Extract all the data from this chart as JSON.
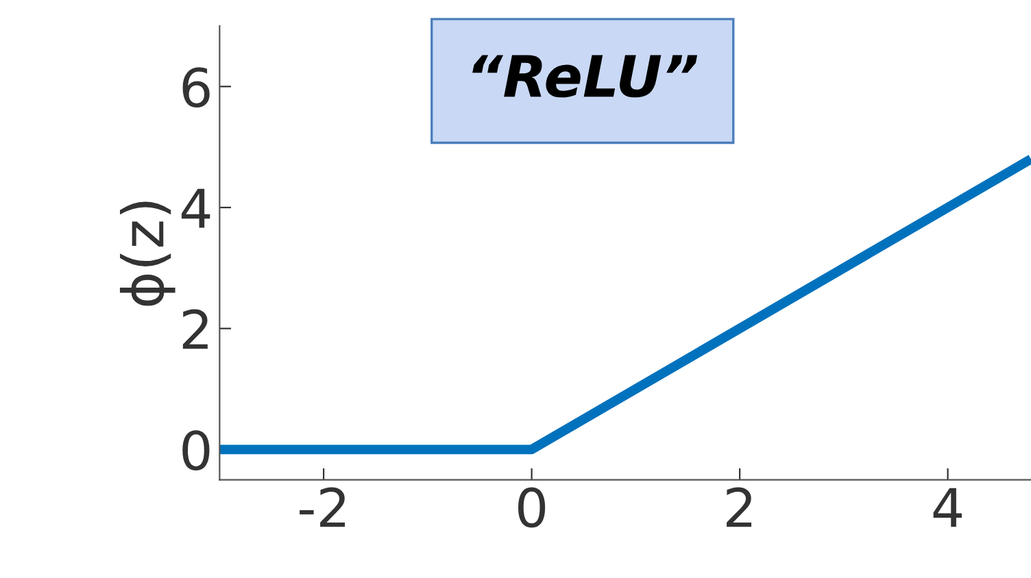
{
  "chart_data": {
    "type": "line",
    "title": "“ReLU”",
    "ylabel": "ϕ(z)",
    "x": [
      -3,
      0,
      4.8
    ],
    "series": [
      {
        "color": "#0072bd",
        "values": [
          0,
          0,
          4.8
        ]
      }
    ],
    "xlim": [
      -3,
      4.8
    ],
    "ylim": [
      -0.5,
      7
    ],
    "xticks": [
      -2,
      0,
      2,
      4
    ],
    "yticks": [
      0,
      2,
      4,
      6
    ],
    "grid": false,
    "legend": false,
    "marker": "none",
    "line_style": "solid"
  }
}
